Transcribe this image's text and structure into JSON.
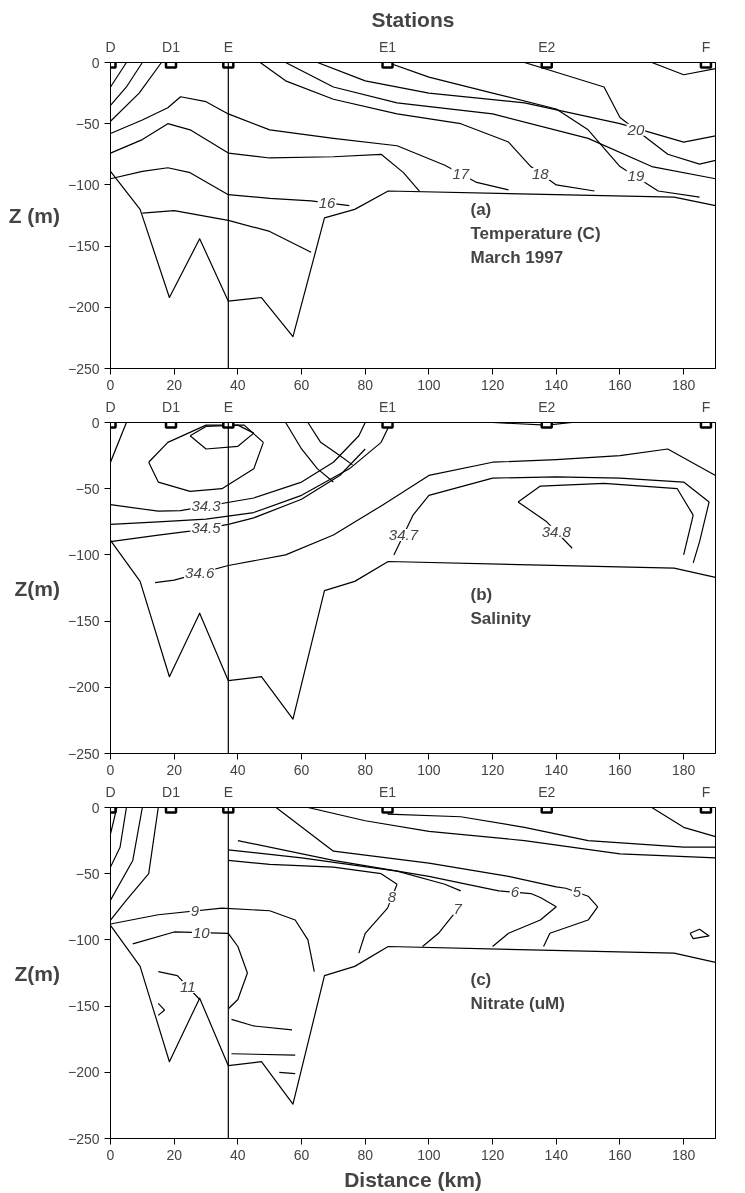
{
  "chart_data": [
    {
      "type": "line",
      "title": "Stations",
      "ylabel": "Z (m)",
      "xlim": [
        0,
        190
      ],
      "ylim": [
        -250,
        0
      ],
      "xticks": [
        0,
        20,
        40,
        60,
        80,
        100,
        120,
        140,
        160,
        180
      ],
      "yticks": [
        0,
        -50,
        -100,
        -150,
        -200,
        -250
      ],
      "grid": false,
      "line_style": "solid",
      "ref_lines": [
        {
          "axis": "x",
          "value": 37,
          "color": "#000000"
        }
      ],
      "annotations": [
        "(a)",
        "Temperature (C)",
        "March 1997",
        {
          "text": "D",
          "x": 0,
          "y": 0
        },
        {
          "text": "D1",
          "x": 19,
          "y": 0
        },
        {
          "text": "E",
          "x": 37,
          "y": 0
        },
        {
          "text": "E1",
          "x": 87,
          "y": 0
        },
        {
          "text": "E2",
          "x": 137,
          "y": 0
        },
        {
          "text": "F",
          "x": 187,
          "y": 0
        },
        {
          "text": "16",
          "x": 68,
          "y": -115
        },
        {
          "text": "17",
          "x": 110,
          "y": -91
        },
        {
          "text": "18",
          "x": 135,
          "y": -91
        },
        {
          "text": "19",
          "x": 165,
          "y": -93
        },
        {
          "text": "20",
          "x": 165,
          "y": -55
        }
      ],
      "series": [
        {
          "color": "#000000",
          "x": [
            0,
            9.3,
            18.5,
            28,
            37,
            47.4,
            57.3,
            67.2,
            76.7,
            87.2,
            177,
            190
          ],
          "values": [
            -89,
            -120,
            -192,
            -144,
            -195,
            -192,
            -224,
            -127,
            -120,
            -105,
            -110,
            -117
          ]
        },
        {
          "color": "#000000",
          "x": [
            0,
            10,
            18,
            25,
            37,
            50,
            63,
            75
          ],
          "values": [
            -95,
            -89,
            -86,
            -90,
            -108,
            -111,
            -113,
            -117
          ]
        },
        {
          "color": "#000000",
          "x": [
            10,
            20,
            37,
            50,
            63
          ],
          "values": [
            -123,
            -121,
            -129,
            -138,
            -155
          ]
        },
        {
          "color": "#000000",
          "x": [
            0,
            10,
            18,
            25,
            37,
            50,
            70,
            85,
            92,
            97
          ],
          "values": [
            -74,
            -63,
            -50,
            -55,
            -74,
            -78,
            -77,
            -75,
            -90,
            -105
          ]
        },
        {
          "color": "#000000",
          "x": [
            0,
            10,
            18,
            22,
            30,
            37,
            50,
            70,
            90,
            105,
            115,
            125
          ],
          "values": [
            -58,
            -47,
            -37,
            -28,
            -32,
            -42,
            -55,
            -62,
            -68,
            -84,
            -98,
            -104
          ]
        },
        {
          "color": "#000000",
          "x": [
            47,
            55,
            70,
            90,
            110,
            125,
            132,
            140,
            152
          ],
          "values": [
            0,
            -15,
            -30,
            -42,
            -50,
            -65,
            -85,
            -100,
            -105
          ]
        },
        {
          "color": "#000000",
          "x": [
            55,
            70,
            90,
            120,
            150,
            170,
            190
          ],
          "values": [
            0,
            -20,
            -33,
            -42,
            -62,
            -85,
            -95
          ]
        },
        {
          "color": "#000000",
          "x": [
            65,
            80,
            100,
            130,
            160,
            180,
            190
          ],
          "values": [
            0,
            -15,
            -25,
            -33,
            -50,
            -65,
            -60
          ]
        },
        {
          "color": "#000000",
          "x": [
            87,
            100,
            120,
            140,
            150,
            160,
            172,
            185
          ],
          "values": [
            0,
            -12,
            -25,
            -38,
            -55,
            -85,
            -105,
            -110
          ]
        },
        {
          "color": "#000000",
          "x": [
            130,
            140,
            155,
            160,
            175,
            185,
            190
          ],
          "values": [
            0,
            -8,
            -20,
            -45,
            -75,
            -83,
            -80
          ]
        },
        {
          "color": "#000000",
          "x": [
            170,
            180,
            190
          ],
          "values": [
            0,
            -10,
            -5
          ]
        },
        {
          "color": "#000000",
          "x": [
            0,
            5
          ],
          "values": [
            -20,
            0
          ]
        },
        {
          "color": "#000000",
          "x": [
            0,
            5,
            10
          ],
          "values": [
            -35,
            -20,
            0
          ]
        },
        {
          "color": "#000000",
          "x": [
            0,
            9,
            16
          ],
          "values": [
            -48,
            -25,
            0
          ]
        },
        {
          "type": "scatter",
          "marker": "square",
          "color": "#000000",
          "x": [
            0,
            19,
            37,
            87,
            137,
            187
          ],
          "values": [
            0,
            0,
            0,
            0,
            0,
            0
          ]
        }
      ]
    },
    {
      "type": "line",
      "ylabel": "Z(m)",
      "xlim": [
        0,
        190
      ],
      "ylim": [
        -250,
        0
      ],
      "xticks": [
        0,
        20,
        40,
        60,
        80,
        100,
        120,
        140,
        160,
        180
      ],
      "yticks": [
        0,
        -50,
        -100,
        -150,
        -200,
        -250
      ],
      "grid": false,
      "line_style": "solid",
      "ref_lines": [
        {
          "axis": "x",
          "value": 37,
          "color": "#000000"
        }
      ],
      "annotations": [
        "(b)",
        "Salinity",
        {
          "text": "D",
          "x": 0,
          "y": 0
        },
        {
          "text": "D1",
          "x": 19,
          "y": 0
        },
        {
          "text": "E",
          "x": 37,
          "y": 0
        },
        {
          "text": "E1",
          "x": 87,
          "y": 0
        },
        {
          "text": "E2",
          "x": 137,
          "y": 0
        },
        {
          "text": "F",
          "x": 187,
          "y": 0
        },
        {
          "text": "34.3",
          "x": 30,
          "y": -63
        },
        {
          "text": "34.5",
          "x": 30,
          "y": -80
        },
        {
          "text": "34.6",
          "x": 28,
          "y": -114
        },
        {
          "text": "34.7",
          "x": 92,
          "y": -85
        },
        {
          "text": "34.8",
          "x": 140,
          "y": -82.5
        }
      ],
      "series": [
        {
          "color": "#000000",
          "x": [
            0,
            9.3,
            18.5,
            28,
            37,
            47.4,
            57.3,
            67.2,
            76.7,
            87.2,
            177,
            190
          ],
          "values": [
            -89,
            -120,
            -192,
            -144,
            -195,
            -192,
            -224,
            -127,
            -120,
            -105,
            -110,
            -117
          ]
        },
        {
          "color": "#000000",
          "x": [
            25,
            30,
            40,
            45
          ],
          "values": [
            -10,
            -3,
            -2,
            -8
          ]
        },
        {
          "color": "#000000",
          "x": [
            25,
            30,
            40,
            45
          ],
          "values": [
            -10,
            -20,
            -18,
            -8
          ]
        },
        {
          "color": "#000000",
          "x": [
            12,
            18,
            30,
            42,
            48
          ],
          "values": [
            -30,
            -15,
            -2,
            -2,
            -15
          ]
        },
        {
          "color": "#000000",
          "x": [
            12,
            15,
            25,
            35,
            45,
            48
          ],
          "values": [
            -30,
            -45,
            -52,
            -50,
            -35,
            -15
          ]
        },
        {
          "color": "#000000",
          "x": [
            0,
            15,
            22,
            45,
            60,
            70,
            78,
            80
          ],
          "values": [
            -62,
            -67,
            -66.5,
            -57,
            -45,
            -30,
            -10,
            0
          ]
        },
        {
          "color": "#000000",
          "x": [
            0,
            15,
            30,
            45,
            60,
            75,
            85,
            88
          ],
          "values": [
            -77,
            -75,
            -73,
            -68,
            -55,
            -35,
            -15,
            0
          ]
        },
        {
          "color": "#000000",
          "x": [
            0,
            15,
            25,
            37,
            45,
            60,
            72,
            80
          ],
          "values": [
            -90,
            -85,
            -82,
            -77,
            -72,
            -58,
            -40,
            -20
          ]
        },
        {
          "color": "#000000",
          "x": [
            14,
            20,
            37,
            55,
            70,
            85,
            100,
            120,
            140,
            160,
            175,
            190
          ],
          "values": [
            -121,
            -119,
            -108,
            -100,
            -85,
            -63,
            -40,
            -30,
            -28,
            -25,
            -20,
            -40
          ]
        },
        {
          "color": "#000000",
          "x": [
            89,
            95,
            100,
            120,
            140,
            160,
            180,
            188
          ],
          "values": [
            -100,
            -70,
            -55,
            -42,
            -41,
            -42,
            -45,
            -60
          ]
        },
        {
          "color": "#000000",
          "x": [
            183,
            185,
            188
          ],
          "values": [
            -106,
            -90,
            -60
          ]
        },
        {
          "color": "#000000",
          "x": [
            128,
            137,
            145
          ],
          "values": [
            -60,
            -75,
            -95
          ]
        },
        {
          "color": "#000000",
          "x": [
            128,
            135,
            155,
            178,
            183
          ],
          "values": [
            -60,
            -48,
            -46,
            -50,
            -70
          ]
        },
        {
          "color": "#000000",
          "x": [
            180,
            183
          ],
          "values": [
            -100,
            -70
          ]
        },
        {
          "color": "#000000",
          "x": [
            120,
            137,
            145
          ],
          "values": [
            0,
            -2,
            0
          ]
        },
        {
          "color": "#000000",
          "x": [
            0,
            5
          ],
          "values": [
            -30,
            0
          ]
        },
        {
          "color": "#000000",
          "x": [
            55,
            60,
            65,
            70
          ],
          "values": [
            0,
            -20,
            -35,
            -45
          ]
        },
        {
          "color": "#000000",
          "x": [
            62,
            66,
            72,
            76
          ],
          "values": [
            0,
            -15,
            -25,
            -32
          ]
        },
        {
          "type": "scatter",
          "marker": "square",
          "color": "#000000",
          "x": [
            0,
            19,
            37,
            87,
            137,
            187
          ],
          "values": [
            0,
            0,
            0,
            0,
            0,
            0
          ]
        }
      ]
    },
    {
      "type": "line",
      "xlabel": "Distance (km)",
      "ylabel": "Z(m)",
      "xlim": [
        0,
        190
      ],
      "ylim": [
        -250,
        0
      ],
      "xticks": [
        0,
        20,
        40,
        60,
        80,
        100,
        120,
        140,
        160,
        180
      ],
      "yticks": [
        0,
        -50,
        -100,
        -150,
        -200,
        -250
      ],
      "grid": false,
      "line_style": "solid",
      "ref_lines": [
        {
          "axis": "x",
          "value": 37,
          "color": "#000000"
        }
      ],
      "annotations": [
        "(c)",
        "Nitrate (uM)",
        {
          "text": "D",
          "x": 0,
          "y": 0
        },
        {
          "text": "D1",
          "x": 19,
          "y": 0
        },
        {
          "text": "E",
          "x": 37,
          "y": 0
        },
        {
          "text": "E1",
          "x": 87,
          "y": 0
        },
        {
          "text": "E2",
          "x": 137,
          "y": 0
        },
        {
          "text": "F",
          "x": 187,
          "y": 0
        },
        {
          "text": "9",
          "x": 26.5,
          "y": -78
        },
        {
          "text": "10",
          "x": 28.5,
          "y": -94.5
        },
        {
          "text": "11",
          "x": 24.3,
          "y": -135.5
        },
        {
          "text": "8",
          "x": 88.4,
          "y": -67.6
        },
        {
          "text": "7",
          "x": 109,
          "y": -76.5
        },
        {
          "text": "6",
          "x": 127,
          "y": -64
        },
        {
          "text": "5",
          "x": 146.5,
          "y": -64
        }
      ],
      "series": [
        {
          "color": "#000000",
          "x": [
            0,
            9.3,
            18.5,
            28,
            37,
            47.4,
            57.3,
            67.2,
            76.7,
            87.2,
            177,
            190
          ],
          "values": [
            -89,
            -120,
            -192,
            -144,
            -195,
            -192,
            -224,
            -127,
            -120,
            -105,
            -110,
            -117
          ]
        },
        {
          "color": "#000000",
          "x": [
            0,
            15,
            35,
            50,
            58,
            62,
            64
          ],
          "values": [
            -88,
            -81,
            -76,
            -78,
            -85,
            -100,
            -124
          ]
        },
        {
          "color": "#000000",
          "x": [
            7,
            20,
            37,
            40,
            43
          ],
          "values": [
            -103,
            -94,
            -95,
            -105,
            -125
          ]
        },
        {
          "color": "#000000",
          "x": [
            37,
            40,
            43
          ],
          "values": [
            -152,
            -145,
            -125
          ]
        },
        {
          "color": "#000000",
          "x": [
            15,
            21,
            28
          ],
          "values": [
            -124,
            -127,
            -145
          ]
        },
        {
          "color": "#000000",
          "x": [
            78,
            80,
            87,
            90
          ],
          "values": [
            -110,
            -95,
            -76,
            -58
          ]
        },
        {
          "color": "#000000",
          "x": [
            37,
            50,
            70,
            85,
            90
          ],
          "values": [
            -40,
            -43,
            -45,
            -50,
            -58
          ]
        },
        {
          "color": "#000000",
          "x": [
            98,
            103,
            108,
            110
          ],
          "values": [
            -105,
            -95,
            -80,
            -73
          ]
        },
        {
          "color": "#000000",
          "x": [
            37,
            60,
            90,
            105,
            110
          ],
          "values": [
            -32,
            -38,
            -48,
            -58,
            -63
          ]
        },
        {
          "color": "#000000",
          "x": [
            120,
            125,
            135,
            140
          ],
          "values": [
            -105,
            -95,
            -85,
            -75
          ]
        },
        {
          "color": "#000000",
          "x": [
            40,
            70,
            100,
            120,
            122,
            132,
            135,
            140
          ],
          "values": [
            -25,
            -40,
            -52,
            -62,
            -63,
            -65,
            -68,
            -75
          ]
        },
        {
          "color": "#000000",
          "x": [
            136,
            138,
            150,
            153
          ],
          "values": [
            -105,
            -95,
            -85,
            -75
          ]
        },
        {
          "color": "#000000",
          "x": [
            52,
            70,
            100,
            125,
            140,
            143,
            150,
            153
          ],
          "values": [
            0,
            -33,
            -42,
            -52,
            -60,
            -61,
            -67,
            -75
          ]
        },
        {
          "color": "#000000",
          "x": [
            87,
            110,
            130,
            150,
            180,
            190
          ],
          "values": [
            -5,
            -7,
            -15,
            -25,
            -30,
            -30
          ]
        },
        {
          "color": "#000000",
          "x": [
            62,
            80,
            100,
            130,
            160,
            190
          ],
          "values": [
            0,
            -10,
            -18,
            -25,
            -35,
            -38
          ]
        },
        {
          "color": "#000000",
          "x": [
            170,
            180,
            190
          ],
          "values": [
            0,
            -15,
            -22
          ]
        },
        {
          "color": "#000000",
          "x": [
            0,
            2
          ],
          "values": [
            -20,
            0
          ]
        },
        {
          "color": "#000000",
          "x": [
            0,
            3,
            5
          ],
          "values": [
            -45,
            -30,
            0
          ]
        },
        {
          "color": "#000000",
          "x": [
            0,
            7,
            10
          ],
          "values": [
            -70,
            -40,
            0
          ]
        },
        {
          "color": "#000000",
          "x": [
            0,
            5,
            12,
            15
          ],
          "values": [
            -85,
            -70,
            -50,
            0
          ]
        },
        {
          "color": "#000000",
          "x": [
            38,
            45,
            57
          ],
          "values": [
            -160,
            -165,
            -168
          ]
        },
        {
          "color": "#000000",
          "x": [
            38,
            58
          ],
          "values": [
            -186,
            -187
          ]
        },
        {
          "color": "#000000",
          "x": [
            53,
            58
          ],
          "values": [
            -200,
            -201
          ]
        },
        {
          "color": "#000000",
          "x": [
            15,
            17
          ],
          "values": [
            -148,
            -153
          ]
        },
        {
          "color": "#000000",
          "x": [
            15,
            17
          ],
          "values": [
            -157,
            -153
          ]
        },
        {
          "color": "#000000",
          "x": [
            182,
            185,
            188
          ],
          "values": [
            -95,
            -92,
            -97
          ]
        },
        {
          "color": "#000000",
          "x": [
            182,
            183,
            188
          ],
          "values": [
            -95,
            -99,
            -97
          ]
        },
        {
          "type": "scatter",
          "marker": "square",
          "color": "#000000",
          "x": [
            0,
            19,
            37,
            87,
            137,
            187
          ],
          "values": [
            0,
            0,
            0,
            0,
            0,
            0
          ]
        }
      ]
    }
  ]
}
